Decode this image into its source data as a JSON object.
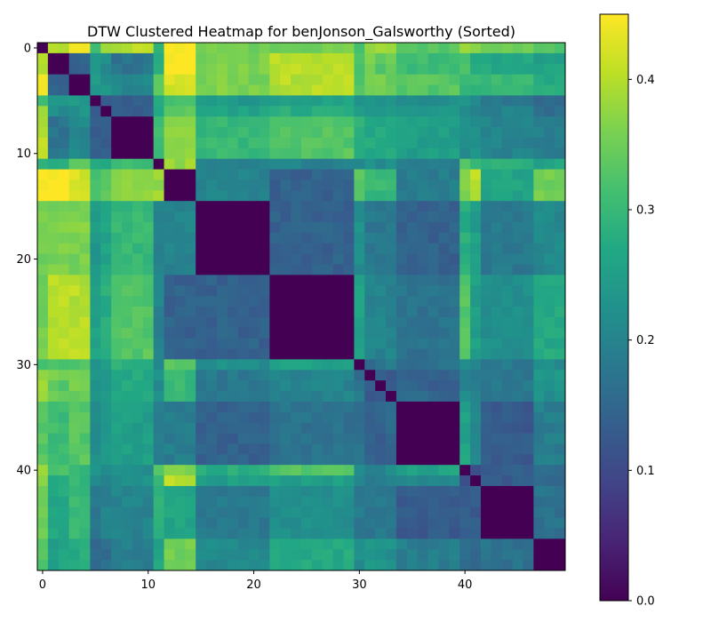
{
  "chart_data": {
    "type": "heatmap",
    "title": "DTW Clustered Heatmap for benJonson_Galsworthy (Sorted)",
    "xlabel": "",
    "ylabel": "",
    "size": 50,
    "x_ticks": [
      0,
      10,
      20,
      30,
      40
    ],
    "y_ticks": [
      0,
      10,
      20,
      30,
      40
    ],
    "colormap": "viridis",
    "value_range": [
      0,
      0.45
    ],
    "colorbar_ticks": [
      0.0,
      0.1,
      0.2,
      0.3,
      0.4
    ],
    "colorbar_tick_labels": [
      "0.0",
      "0.1",
      "0.2",
      "0.3",
      "0.4"
    ],
    "clusters": [
      {
        "start": 0,
        "end": 0
      },
      {
        "start": 1,
        "end": 2
      },
      {
        "start": 3,
        "end": 4
      },
      {
        "start": 5,
        "end": 5
      },
      {
        "start": 6,
        "end": 6
      },
      {
        "start": 7,
        "end": 10
      },
      {
        "start": 11,
        "end": 11
      },
      {
        "start": 12,
        "end": 14
      },
      {
        "start": 15,
        "end": 21
      },
      {
        "start": 22,
        "end": 29
      },
      {
        "start": 30,
        "end": 30
      },
      {
        "start": 31,
        "end": 31
      },
      {
        "start": 32,
        "end": 32
      },
      {
        "start": 33,
        "end": 33
      },
      {
        "start": 34,
        "end": 39
      },
      {
        "start": 40,
        "end": 40
      },
      {
        "start": 41,
        "end": 41
      },
      {
        "start": 42,
        "end": 46
      },
      {
        "start": 47,
        "end": 49
      }
    ],
    "block_values": [
      [
        0.0,
        0.41,
        0.45,
        0.32,
        0.37,
        0.4,
        0.28,
        0.45,
        0.35,
        0.35,
        0.32,
        0.38,
        0.38,
        0.38,
        0.33,
        0.38,
        0.38,
        0.35,
        0.33
      ],
      [
        0.41,
        0.0,
        0.14,
        0.25,
        0.22,
        0.17,
        0.29,
        0.45,
        0.36,
        0.4,
        0.33,
        0.35,
        0.33,
        0.35,
        0.31,
        0.31,
        0.28,
        0.27,
        0.26
      ],
      [
        0.45,
        0.14,
        0.0,
        0.24,
        0.23,
        0.21,
        0.33,
        0.42,
        0.36,
        0.4,
        0.33,
        0.35,
        0.35,
        0.35,
        0.33,
        0.3,
        0.3,
        0.3,
        0.28
      ],
      [
        0.32,
        0.25,
        0.24,
        0.0,
        0.14,
        0.14,
        0.26,
        0.32,
        0.24,
        0.26,
        0.24,
        0.24,
        0.22,
        0.22,
        0.22,
        0.22,
        0.2,
        0.18,
        0.15
      ],
      [
        0.37,
        0.22,
        0.23,
        0.14,
        0.0,
        0.13,
        0.27,
        0.34,
        0.26,
        0.28,
        0.25,
        0.25,
        0.24,
        0.24,
        0.23,
        0.22,
        0.19,
        0.2,
        0.16
      ],
      [
        0.4,
        0.17,
        0.21,
        0.14,
        0.13,
        0.0,
        0.3,
        0.38,
        0.3,
        0.33,
        0.28,
        0.27,
        0.27,
        0.27,
        0.25,
        0.22,
        0.22,
        0.2,
        0.19
      ],
      [
        0.28,
        0.29,
        0.33,
        0.26,
        0.27,
        0.3,
        0.0,
        0.38,
        0.2,
        0.2,
        0.2,
        0.22,
        0.22,
        0.22,
        0.19,
        0.32,
        0.31,
        0.28,
        0.26
      ],
      [
        0.45,
        0.45,
        0.42,
        0.32,
        0.34,
        0.38,
        0.38,
        0.0,
        0.2,
        0.14,
        0.33,
        0.3,
        0.3,
        0.3,
        0.19,
        0.36,
        0.4,
        0.26,
        0.35
      ],
      [
        0.35,
        0.36,
        0.36,
        0.24,
        0.26,
        0.3,
        0.2,
        0.2,
        0.0,
        0.14,
        0.22,
        0.18,
        0.18,
        0.18,
        0.14,
        0.28,
        0.25,
        0.18,
        0.21
      ],
      [
        0.35,
        0.4,
        0.4,
        0.26,
        0.28,
        0.33,
        0.2,
        0.14,
        0.14,
        0.0,
        0.26,
        0.2,
        0.2,
        0.2,
        0.17,
        0.33,
        0.25,
        0.22,
        0.27
      ],
      [
        0.32,
        0.33,
        0.33,
        0.24,
        0.25,
        0.28,
        0.2,
        0.33,
        0.22,
        0.26,
        0.0,
        0.16,
        0.17,
        0.18,
        0.17,
        0.21,
        0.21,
        0.18,
        0.22
      ],
      [
        0.38,
        0.35,
        0.35,
        0.24,
        0.25,
        0.27,
        0.22,
        0.3,
        0.18,
        0.2,
        0.16,
        0.0,
        0.13,
        0.13,
        0.14,
        0.2,
        0.17,
        0.18,
        0.24
      ],
      [
        0.38,
        0.33,
        0.35,
        0.22,
        0.24,
        0.27,
        0.22,
        0.3,
        0.18,
        0.2,
        0.17,
        0.13,
        0.0,
        0.12,
        0.14,
        0.19,
        0.19,
        0.18,
        0.23
      ],
      [
        0.38,
        0.35,
        0.35,
        0.22,
        0.24,
        0.27,
        0.22,
        0.3,
        0.18,
        0.2,
        0.18,
        0.13,
        0.12,
        0.0,
        0.15,
        0.21,
        0.19,
        0.18,
        0.22
      ],
      [
        0.33,
        0.31,
        0.33,
        0.22,
        0.23,
        0.25,
        0.19,
        0.19,
        0.14,
        0.17,
        0.17,
        0.14,
        0.14,
        0.15,
        0.0,
        0.26,
        0.21,
        0.13,
        0.19
      ],
      [
        0.38,
        0.31,
        0.3,
        0.22,
        0.22,
        0.22,
        0.32,
        0.36,
        0.28,
        0.33,
        0.21,
        0.2,
        0.19,
        0.21,
        0.26,
        0.0,
        0.1,
        0.13,
        0.16
      ],
      [
        0.38,
        0.28,
        0.3,
        0.2,
        0.19,
        0.22,
        0.31,
        0.4,
        0.25,
        0.25,
        0.21,
        0.17,
        0.19,
        0.19,
        0.21,
        0.1,
        0.0,
        0.13,
        0.16
      ],
      [
        0.35,
        0.27,
        0.3,
        0.18,
        0.2,
        0.2,
        0.28,
        0.26,
        0.18,
        0.22,
        0.18,
        0.18,
        0.18,
        0.18,
        0.13,
        0.13,
        0.13,
        0.0,
        0.17
      ],
      [
        0.33,
        0.26,
        0.28,
        0.15,
        0.16,
        0.19,
        0.26,
        0.35,
        0.21,
        0.27,
        0.22,
        0.24,
        0.23,
        0.22,
        0.19,
        0.16,
        0.16,
        0.17,
        0.0
      ]
    ]
  }
}
